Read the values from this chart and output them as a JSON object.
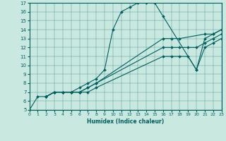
{
  "xlabel": "Humidex (Indice chaleur)",
  "bg_color": "#c8e8e0",
  "line_color": "#006060",
  "xlim": [
    0,
    23
  ],
  "ylim": [
    5,
    17
  ],
  "xticks": [
    0,
    1,
    2,
    3,
    4,
    5,
    6,
    7,
    8,
    9,
    10,
    11,
    12,
    13,
    14,
    15,
    16,
    17,
    18,
    19,
    20,
    21,
    22,
    23
  ],
  "yticks": [
    5,
    6,
    7,
    8,
    9,
    10,
    11,
    12,
    13,
    14,
    15,
    16,
    17
  ],
  "lines": [
    {
      "x": [
        0,
        1,
        2,
        3,
        4,
        5,
        6,
        7,
        8,
        9,
        10,
        11,
        12,
        13,
        14,
        15,
        16,
        20,
        21,
        22,
        23
      ],
      "y": [
        5,
        6.5,
        6.5,
        7,
        7,
        7,
        7.5,
        8,
        8.5,
        9.5,
        14,
        16,
        16.5,
        17,
        17,
        17,
        15.5,
        9.5,
        13,
        13.5,
        14
      ]
    },
    {
      "x": [
        2,
        3,
        4,
        5,
        6,
        7,
        8,
        16,
        17,
        18,
        21,
        22,
        23
      ],
      "y": [
        6.5,
        7,
        7,
        7,
        7,
        7.5,
        8,
        13,
        13,
        13,
        13.5,
        13.5,
        14
      ]
    },
    {
      "x": [
        2,
        3,
        4,
        5,
        6,
        7,
        8,
        16,
        17,
        18,
        19,
        20,
        21,
        22,
        23
      ],
      "y": [
        6.5,
        7,
        7,
        7,
        7,
        7.5,
        8,
        12,
        12,
        12,
        12,
        12,
        12.5,
        13,
        13.5
      ]
    },
    {
      "x": [
        2,
        3,
        4,
        5,
        6,
        7,
        8,
        16,
        17,
        18,
        19,
        20,
        21,
        22,
        23
      ],
      "y": [
        6.5,
        7,
        7,
        7,
        7,
        7,
        7.5,
        11,
        11,
        11,
        11,
        9.5,
        12,
        12.5,
        13
      ]
    }
  ]
}
